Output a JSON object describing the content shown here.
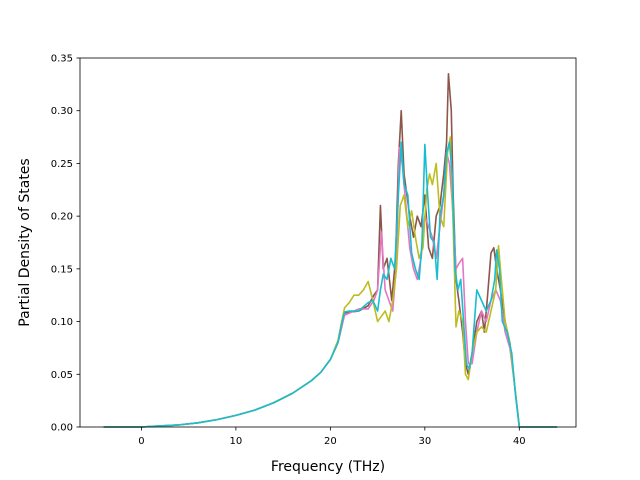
{
  "chart_data": {
    "type": "line",
    "title": "",
    "xlabel": "Frequency (THz)",
    "ylabel": "Partial Density of States",
    "xlim": [
      -6.5,
      46.0
    ],
    "ylim": [
      0.0,
      0.35
    ],
    "xticks": [
      0,
      10,
      20,
      30,
      40
    ],
    "yticks": [
      0.0,
      0.05,
      0.1,
      0.15,
      0.2,
      0.25,
      0.3,
      0.35
    ],
    "xtick_labels": [
      "0",
      "10",
      "20",
      "30",
      "40"
    ],
    "ytick_labels": [
      "0.00",
      "0.05",
      "0.10",
      "0.15",
      "0.20",
      "0.25",
      "0.30",
      "0.35"
    ],
    "grid": false,
    "legend": "none",
    "series": [
      {
        "color": "#8c564b",
        "points": [
          [
            -4,
            0
          ],
          [
            0,
            0
          ],
          [
            2,
            0.001
          ],
          [
            4,
            0.002
          ],
          [
            6,
            0.004
          ],
          [
            8,
            0.007
          ],
          [
            10,
            0.011
          ],
          [
            12,
            0.016
          ],
          [
            14,
            0.023
          ],
          [
            16,
            0.032
          ],
          [
            18,
            0.044
          ],
          [
            19,
            0.052
          ],
          [
            20,
            0.064
          ],
          [
            20.8,
            0.08
          ],
          [
            21.2,
            0.095
          ],
          [
            21.5,
            0.108
          ],
          [
            22,
            0.109
          ],
          [
            23,
            0.11
          ],
          [
            24,
            0.115
          ],
          [
            24.6,
            0.125
          ],
          [
            25,
            0.13
          ],
          [
            25.3,
            0.21
          ],
          [
            25.6,
            0.15
          ],
          [
            26,
            0.16
          ],
          [
            26.5,
            0.12
          ],
          [
            26.9,
            0.16
          ],
          [
            27.2,
            0.25
          ],
          [
            27.5,
            0.3
          ],
          [
            27.8,
            0.24
          ],
          [
            28.1,
            0.22
          ],
          [
            28.4,
            0.2
          ],
          [
            28.8,
            0.18
          ],
          [
            29.2,
            0.2
          ],
          [
            29.6,
            0.19
          ],
          [
            30,
            0.22
          ],
          [
            30.4,
            0.17
          ],
          [
            30.8,
            0.16
          ],
          [
            31.2,
            0.2
          ],
          [
            31.6,
            0.21
          ],
          [
            32,
            0.24
          ],
          [
            32.3,
            0.27
          ],
          [
            32.5,
            0.335
          ],
          [
            32.8,
            0.3
          ],
          [
            33,
            0.22
          ],
          [
            33.3,
            0.14
          ],
          [
            33.6,
            0.12
          ],
          [
            34,
            0.09
          ],
          [
            34.3,
            0.06
          ],
          [
            34.6,
            0.05
          ],
          [
            35,
            0.07
          ],
          [
            35.5,
            0.1
          ],
          [
            36,
            0.11
          ],
          [
            36.3,
            0.09
          ],
          [
            36.6,
            0.12
          ],
          [
            37,
            0.165
          ],
          [
            37.3,
            0.17
          ],
          [
            37.6,
            0.15
          ],
          [
            38,
            0.13
          ],
          [
            38.5,
            0.1
          ],
          [
            39,
            0.08
          ],
          [
            39.5,
            0.04
          ],
          [
            40,
            0
          ],
          [
            44,
            0
          ]
        ]
      },
      {
        "color": "#e377c2",
        "points": [
          [
            -4,
            0
          ],
          [
            0,
            0
          ],
          [
            2,
            0.001
          ],
          [
            4,
            0.002
          ],
          [
            6,
            0.004
          ],
          [
            8,
            0.007
          ],
          [
            10,
            0.011
          ],
          [
            12,
            0.016
          ],
          [
            14,
            0.023
          ],
          [
            16,
            0.032
          ],
          [
            18,
            0.044
          ],
          [
            19,
            0.052
          ],
          [
            20,
            0.064
          ],
          [
            20.8,
            0.08
          ],
          [
            21.2,
            0.095
          ],
          [
            21.5,
            0.106
          ],
          [
            22,
            0.108
          ],
          [
            23,
            0.112
          ],
          [
            24,
            0.112
          ],
          [
            24.6,
            0.12
          ],
          [
            25,
            0.13
          ],
          [
            25.4,
            0.185
          ],
          [
            25.8,
            0.13
          ],
          [
            26.2,
            0.12
          ],
          [
            26.6,
            0.11
          ],
          [
            27,
            0.155
          ],
          [
            27.3,
            0.265
          ],
          [
            27.6,
            0.25
          ],
          [
            28,
            0.21
          ],
          [
            28.4,
            0.17
          ],
          [
            28.8,
            0.15
          ],
          [
            29.2,
            0.14
          ],
          [
            29.6,
            0.16
          ],
          [
            30,
            0.2
          ],
          [
            30.4,
            0.19
          ],
          [
            30.8,
            0.18
          ],
          [
            31.2,
            0.16
          ],
          [
            31.6,
            0.19
          ],
          [
            32,
            0.22
          ],
          [
            32.3,
            0.26
          ],
          [
            32.6,
            0.25
          ],
          [
            33,
            0.2
          ],
          [
            33.3,
            0.15
          ],
          [
            33.6,
            0.155
          ],
          [
            34,
            0.16
          ],
          [
            34.3,
            0.1
          ],
          [
            34.6,
            0.06
          ],
          [
            35,
            0.06
          ],
          [
            35.5,
            0.09
          ],
          [
            36,
            0.11
          ],
          [
            36.5,
            0.1
          ],
          [
            37,
            0.12
          ],
          [
            37.5,
            0.13
          ],
          [
            38,
            0.12
          ],
          [
            38.5,
            0.09
          ],
          [
            39,
            0.075
          ],
          [
            39.5,
            0.04
          ],
          [
            40,
            0
          ],
          [
            44,
            0
          ]
        ]
      },
      {
        "color": "#bcbd22",
        "points": [
          [
            -4,
            0
          ],
          [
            0,
            0
          ],
          [
            2,
            0.001
          ],
          [
            4,
            0.002
          ],
          [
            6,
            0.004
          ],
          [
            8,
            0.007
          ],
          [
            10,
            0.011
          ],
          [
            12,
            0.016
          ],
          [
            14,
            0.023
          ],
          [
            16,
            0.032
          ],
          [
            18,
            0.044
          ],
          [
            19,
            0.052
          ],
          [
            20,
            0.064
          ],
          [
            20.8,
            0.082
          ],
          [
            21.2,
            0.1
          ],
          [
            21.5,
            0.113
          ],
          [
            22,
            0.118
          ],
          [
            22.5,
            0.125
          ],
          [
            23,
            0.125
          ],
          [
            23.5,
            0.13
          ],
          [
            24,
            0.138
          ],
          [
            24.5,
            0.12
          ],
          [
            25,
            0.1
          ],
          [
            25.4,
            0.105
          ],
          [
            25.8,
            0.11
          ],
          [
            26.2,
            0.1
          ],
          [
            26.6,
            0.12
          ],
          [
            27,
            0.15
          ],
          [
            27.4,
            0.21
          ],
          [
            27.8,
            0.22
          ],
          [
            28.2,
            0.19
          ],
          [
            28.6,
            0.205
          ],
          [
            29,
            0.18
          ],
          [
            29.4,
            0.16
          ],
          [
            29.8,
            0.17
          ],
          [
            30.2,
            0.225
          ],
          [
            30.5,
            0.24
          ],
          [
            30.8,
            0.23
          ],
          [
            31.2,
            0.25
          ],
          [
            31.6,
            0.2
          ],
          [
            32,
            0.19
          ],
          [
            32.4,
            0.26
          ],
          [
            32.7,
            0.275
          ],
          [
            33,
            0.19
          ],
          [
            33.3,
            0.095
          ],
          [
            33.6,
            0.11
          ],
          [
            34,
            0.1
          ],
          [
            34.3,
            0.05
          ],
          [
            34.6,
            0.045
          ],
          [
            35,
            0.07
          ],
          [
            35.5,
            0.09
          ],
          [
            36,
            0.095
          ],
          [
            36.5,
            0.09
          ],
          [
            37,
            0.11
          ],
          [
            37.5,
            0.13
          ],
          [
            37.8,
            0.172
          ],
          [
            38,
            0.15
          ],
          [
            38.5,
            0.1
          ],
          [
            39,
            0.08
          ],
          [
            39.5,
            0.04
          ],
          [
            40,
            0
          ],
          [
            44,
            0
          ]
        ]
      },
      {
        "color": "#17becf",
        "points": [
          [
            -4,
            0
          ],
          [
            0,
            0
          ],
          [
            2,
            0.001
          ],
          [
            4,
            0.002
          ],
          [
            6,
            0.004
          ],
          [
            8,
            0.007
          ],
          [
            10,
            0.011
          ],
          [
            12,
            0.016
          ],
          [
            14,
            0.023
          ],
          [
            16,
            0.032
          ],
          [
            18,
            0.044
          ],
          [
            19,
            0.052
          ],
          [
            20,
            0.064
          ],
          [
            20.8,
            0.08
          ],
          [
            21.2,
            0.098
          ],
          [
            21.5,
            0.109
          ],
          [
            22,
            0.11
          ],
          [
            23,
            0.11
          ],
          [
            24,
            0.118
          ],
          [
            24.5,
            0.12
          ],
          [
            25,
            0.11
          ],
          [
            25.3,
            0.13
          ],
          [
            25.6,
            0.145
          ],
          [
            26,
            0.14
          ],
          [
            26.4,
            0.16
          ],
          [
            26.8,
            0.15
          ],
          [
            27.2,
            0.22
          ],
          [
            27.5,
            0.27
          ],
          [
            27.8,
            0.23
          ],
          [
            28.2,
            0.22
          ],
          [
            28.6,
            0.165
          ],
          [
            29,
            0.15
          ],
          [
            29.4,
            0.14
          ],
          [
            29.7,
            0.175
          ],
          [
            30,
            0.268
          ],
          [
            30.3,
            0.22
          ],
          [
            30.6,
            0.18
          ],
          [
            31,
            0.175
          ],
          [
            31.3,
            0.14
          ],
          [
            31.6,
            0.2
          ],
          [
            32,
            0.22
          ],
          [
            32.3,
            0.26
          ],
          [
            32.6,
            0.27
          ],
          [
            32.9,
            0.24
          ],
          [
            33.2,
            0.15
          ],
          [
            33.5,
            0.13
          ],
          [
            33.8,
            0.14
          ],
          [
            34.1,
            0.1
          ],
          [
            34.4,
            0.06
          ],
          [
            34.7,
            0.055
          ],
          [
            35,
            0.07
          ],
          [
            35.5,
            0.13
          ],
          [
            36,
            0.12
          ],
          [
            36.5,
            0.11
          ],
          [
            37,
            0.12
          ],
          [
            37.4,
            0.14
          ],
          [
            37.6,
            0.168
          ],
          [
            37.9,
            0.15
          ],
          [
            38.2,
            0.1
          ],
          [
            38.7,
            0.09
          ],
          [
            39.2,
            0.07
          ],
          [
            39.6,
            0.03
          ],
          [
            40,
            0
          ],
          [
            44,
            0
          ]
        ]
      }
    ]
  }
}
